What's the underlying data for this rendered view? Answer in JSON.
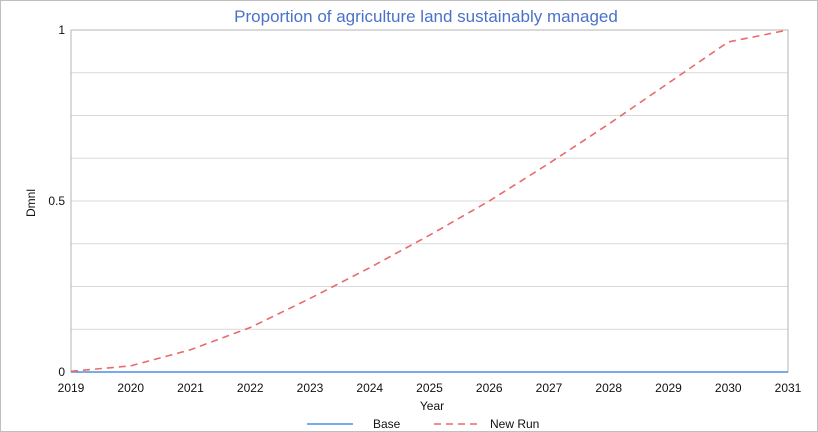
{
  "chart_data": {
    "type": "line",
    "title": "Proportion of agriculture land sustainably managed",
    "xlabel": "Year",
    "ylabel": "Dmnl",
    "xlim": [
      2019,
      2031
    ],
    "ylim": [
      0,
      1
    ],
    "x_ticks": [
      "2019",
      "2020",
      "2021",
      "2022",
      "2023",
      "2024",
      "2025",
      "2026",
      "2027",
      "2028",
      "2029",
      "2030",
      "2031"
    ],
    "y_ticks": [
      "0",
      "0.5",
      "1"
    ],
    "grid": true,
    "legend_position": "bottom-center",
    "series": [
      {
        "name": "Base",
        "color": "#4a90e2",
        "style": "solid",
        "x": [
          2019,
          2020,
          2021,
          2022,
          2023,
          2024,
          2025,
          2026,
          2027,
          2028,
          2029,
          2030,
          2031
        ],
        "y": [
          0,
          0,
          0,
          0,
          0,
          0,
          0,
          0,
          0,
          0,
          0,
          0,
          0
        ]
      },
      {
        "name": "New Run",
        "color": "#e96b6b",
        "style": "dashed",
        "x": [
          2019,
          2020,
          2021,
          2022,
          2023,
          2024,
          2025,
          2026,
          2027,
          2028,
          2029,
          2030,
          2031
        ],
        "y": [
          0.002,
          0.018,
          0.065,
          0.13,
          0.215,
          0.305,
          0.4,
          0.5,
          0.61,
          0.725,
          0.845,
          0.965,
          1.0
        ]
      }
    ]
  }
}
